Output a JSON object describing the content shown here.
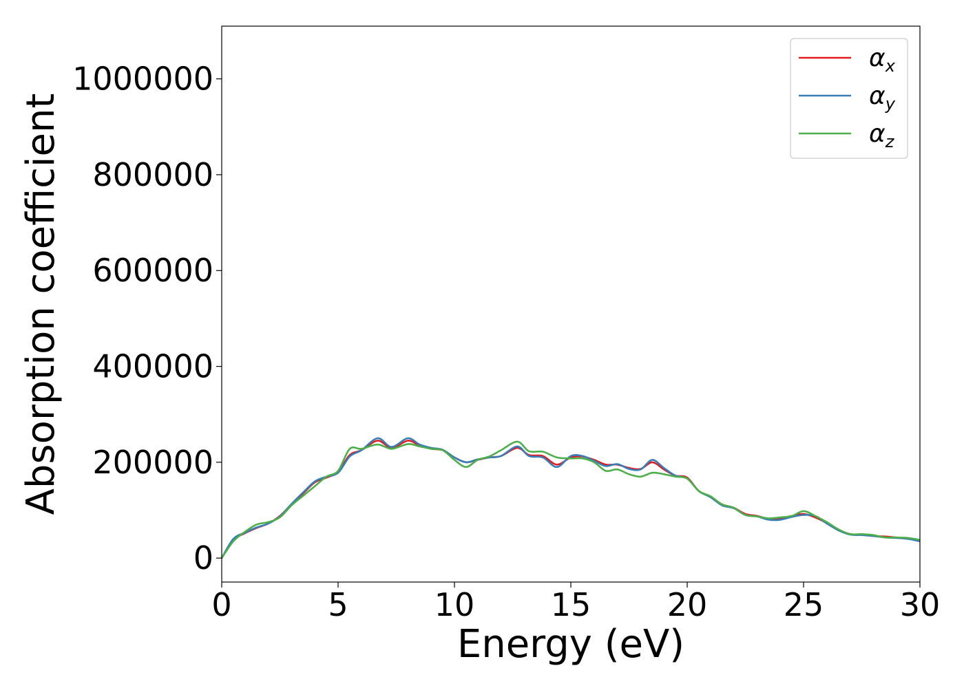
{
  "chart_data": {
    "type": "line",
    "title": "",
    "xlabel": "Energy (eV)",
    "ylabel": "Absorption coefficient",
    "xlim": [
      0,
      30
    ],
    "ylim": [
      -50000,
      1110000
    ],
    "xticks": [
      "0",
      "5",
      "10",
      "15",
      "20",
      "25",
      "30"
    ],
    "yticks": [
      "0",
      "200000",
      "400000",
      "600000",
      "800000",
      "1000000"
    ],
    "grid": false,
    "legend_position": "top-right",
    "series": [
      {
        "name": "α",
        "subscript": "x",
        "color": "#e41a1c",
        "x": [
          0,
          0.5,
          1,
          1.5,
          2,
          2.5,
          3,
          3.5,
          4,
          4.5,
          5,
          5.5,
          6,
          6.7,
          7.3,
          8,
          8.5,
          9,
          9.5,
          10,
          10.5,
          11,
          11.5,
          12,
          12.7,
          13.2,
          13.8,
          14.4,
          15,
          15.5,
          16,
          16.5,
          17,
          17.5,
          18,
          18.5,
          19,
          19.5,
          20,
          20.5,
          21,
          21.5,
          22,
          22.5,
          23,
          23.5,
          24,
          24.5,
          25,
          25.5,
          26,
          26.5,
          27,
          27.5,
          28,
          28.5,
          29,
          29.5,
          30
        ],
        "y": [
          0,
          38000,
          52000,
          63000,
          72000,
          88000,
          112000,
          135000,
          158000,
          168000,
          180000,
          215000,
          225000,
          245000,
          230000,
          245000,
          235000,
          228000,
          225000,
          210000,
          200000,
          205000,
          210000,
          213000,
          230000,
          215000,
          213000,
          195000,
          210000,
          212000,
          205000,
          195000,
          195000,
          188000,
          186000,
          200000,
          185000,
          172000,
          168000,
          140000,
          128000,
          112000,
          105000,
          92000,
          88000,
          82000,
          82000,
          88000,
          92000,
          85000,
          73000,
          58000,
          50000,
          49000,
          46000,
          45000,
          43000,
          41000,
          37000
        ]
      },
      {
        "name": "α",
        "subscript": "y",
        "color": "#377eb8",
        "x": [
          0,
          0.5,
          1,
          1.5,
          2,
          2.5,
          3,
          3.5,
          4,
          4.5,
          5,
          5.5,
          6,
          6.7,
          7.3,
          8,
          8.5,
          9,
          9.5,
          10,
          10.5,
          11,
          11.5,
          12,
          12.7,
          13.2,
          13.8,
          14.4,
          15,
          15.5,
          16,
          16.5,
          17,
          17.5,
          18,
          18.5,
          19,
          19.5,
          20,
          20.5,
          21,
          21.5,
          22,
          22.5,
          23,
          23.5,
          24,
          24.5,
          25,
          25.5,
          26,
          26.5,
          27,
          27.5,
          28,
          28.5,
          29,
          29.5,
          30
        ],
        "y": [
          0,
          40000,
          53000,
          64000,
          72000,
          87000,
          113000,
          137000,
          160000,
          170000,
          178000,
          212000,
          225000,
          250000,
          232000,
          250000,
          237000,
          230000,
          226000,
          210000,
          200000,
          206000,
          210000,
          213000,
          233000,
          213000,
          210000,
          190000,
          213000,
          213000,
          203000,
          192000,
          196000,
          186000,
          185000,
          205000,
          188000,
          172000,
          166000,
          140000,
          127000,
          110000,
          104000,
          90000,
          87000,
          80000,
          80000,
          86000,
          90000,
          88000,
          72000,
          58000,
          49000,
          48000,
          46000,
          43000,
          42000,
          40000,
          35000
        ]
      },
      {
        "name": "α",
        "subscript": "z",
        "color": "#4daf4a",
        "x": [
          0,
          0.5,
          1,
          1.5,
          2,
          2.5,
          3,
          3.5,
          4,
          4.5,
          5,
          5.5,
          6,
          6.7,
          7.3,
          8,
          8.5,
          9,
          9.5,
          10,
          10.5,
          11,
          11.5,
          12,
          12.7,
          13.2,
          13.8,
          14.4,
          15,
          15.5,
          16,
          16.5,
          17,
          17.5,
          18,
          18.5,
          19,
          19.5,
          20,
          20.5,
          21,
          21.5,
          22,
          22.5,
          23,
          23.5,
          24,
          24.5,
          25,
          25.5,
          26,
          26.5,
          27,
          27.5,
          28,
          28.5,
          29,
          29.5,
          30
        ],
        "y": [
          0,
          35000,
          55000,
          70000,
          75000,
          85000,
          110000,
          130000,
          150000,
          170000,
          182000,
          228000,
          228000,
          237000,
          228000,
          238000,
          233000,
          228000,
          225000,
          205000,
          190000,
          205000,
          212000,
          225000,
          243000,
          223000,
          222000,
          210000,
          208000,
          208000,
          200000,
          182000,
          185000,
          175000,
          170000,
          178000,
          175000,
          170000,
          166000,
          140000,
          129000,
          112000,
          105000,
          90000,
          87000,
          83000,
          85000,
          88000,
          98000,
          88000,
          75000,
          60000,
          50000,
          50000,
          48000,
          43000,
          43000,
          42000,
          38000
        ]
      }
    ]
  }
}
